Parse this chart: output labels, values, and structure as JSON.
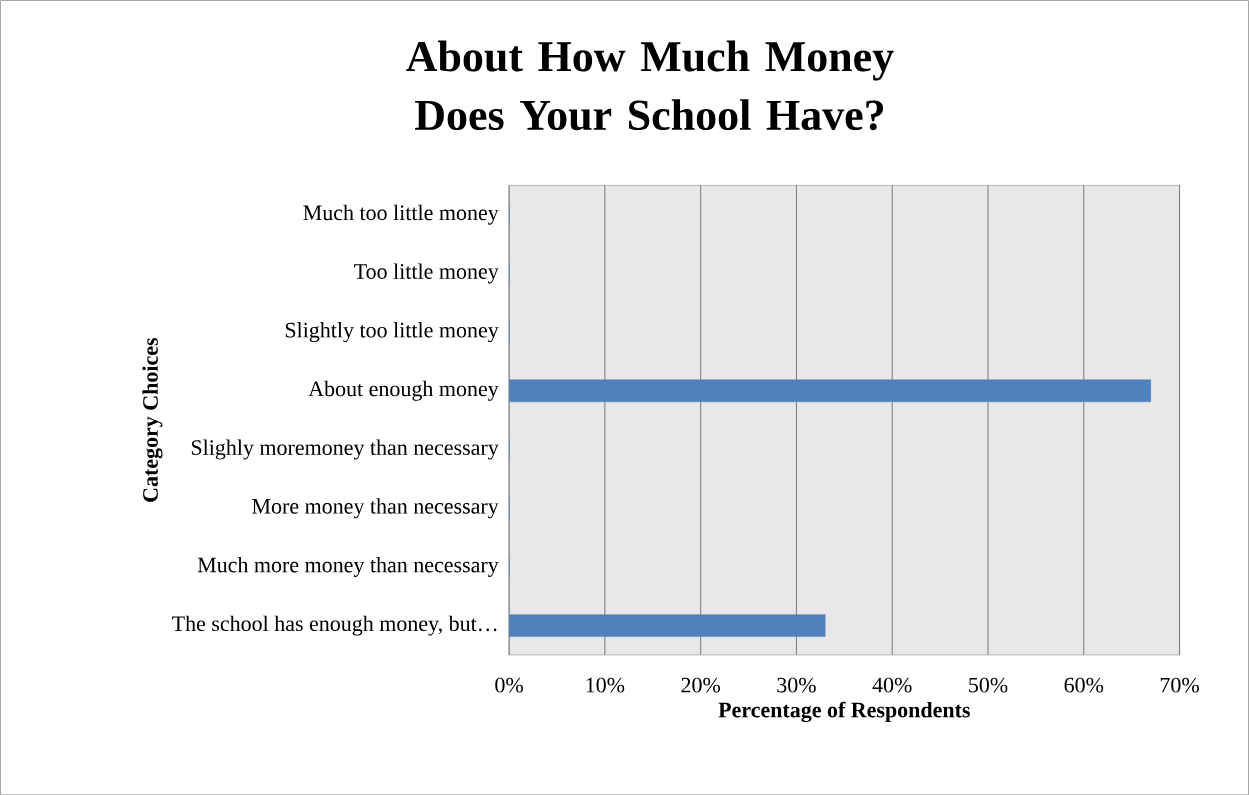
{
  "chart_data": {
    "type": "bar",
    "orientation": "horizontal",
    "title": "About How Much Money Does Your School Have?",
    "xlabel": "Percentage of Respondents",
    "ylabel": "Category Choices",
    "categories": [
      "Much too little money",
      "Too little money",
      "Slightly too little money",
      "About enough money",
      "Slighly moremoney than necessary",
      "More money than necessary",
      "Much more money than necessary",
      "The school has enough money, but…"
    ],
    "values": [
      0,
      0,
      0,
      67,
      0,
      0,
      0,
      33
    ],
    "color": "#4f81bd",
    "xlim": [
      0,
      70
    ],
    "xticks": [
      {
        "value": 0,
        "label": "0%"
      },
      {
        "value": 10,
        "label": "10%"
      },
      {
        "value": 20,
        "label": "20%"
      },
      {
        "value": 30,
        "label": "30%"
      },
      {
        "value": 40,
        "label": "40%"
      },
      {
        "value": 50,
        "label": "50%"
      },
      {
        "value": 60,
        "label": "60%"
      },
      {
        "value": 70,
        "label": "70%"
      }
    ],
    "grid": "x"
  }
}
